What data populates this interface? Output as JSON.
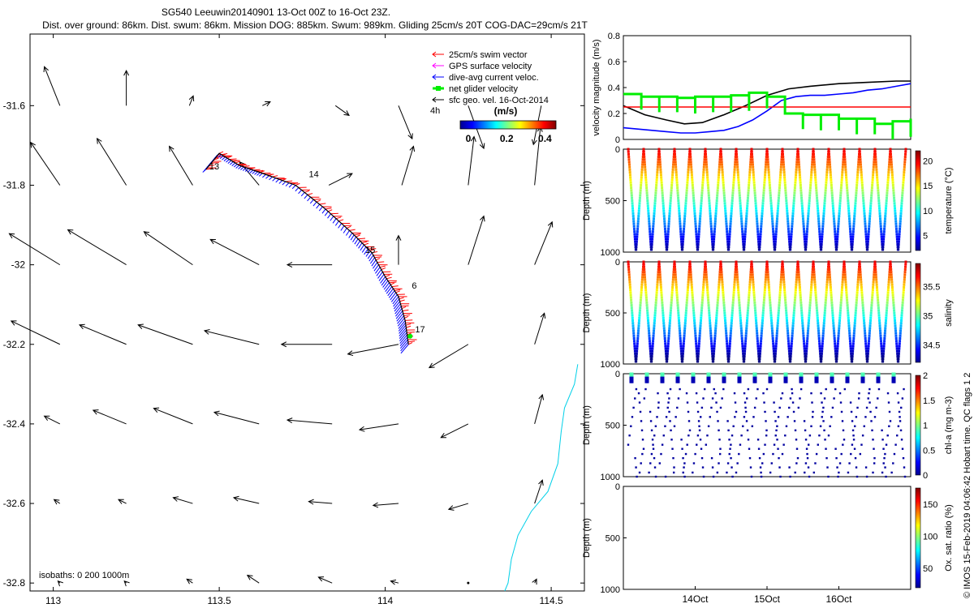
{
  "header": {
    "title_line1": "SG540 Leeuwin20140901 13-Oct 00Z to 16-Oct 23Z.",
    "title_line2": "Dist. over ground: 86km. Dist. swum: 86km. Mission DOG: 885km. Swum: 989km. Gliding 25cm/s 20T COG-DAC=29cm/s 21T"
  },
  "copyright": "© IMOS 15-Feb-2019 04:06:42 Hobart time. QC flags 1 2",
  "chart_data": [
    {
      "id": "map",
      "type": "scatter",
      "title": "",
      "xlim": [
        112.93,
        114.6
      ],
      "ylim": [
        -32.82,
        -31.42
      ],
      "x_ticks": [
        113,
        113.5,
        114,
        114.5
      ],
      "x_tick_labels": [
        "113",
        "113.5",
        "114",
        "114.5"
      ],
      "y_ticks": [
        -31.6,
        -31.8,
        -32,
        -32.2,
        -32.4,
        -32.6,
        -32.8
      ],
      "y_tick_labels": [
        "-31.6",
        "-31.8",
        "-32",
        "-32.2",
        "-32.4",
        "-32.6",
        "-32.8"
      ],
      "legend": [
        {
          "label": "25cm/s swim vector",
          "color": "#ff0000"
        },
        {
          "label": "GPS surface velocity",
          "color": "#ff00ff"
        },
        {
          "label": "dive-avg current veloc.",
          "color": "#0000ff"
        },
        {
          "label": "net glider velocity",
          "color": "#00ee00"
        },
        {
          "label": "sfc geo. vel. 16-Oct-2014",
          "color": "#000000"
        }
      ],
      "legend_extra": "4h",
      "colorbar": {
        "label": "(m/s)",
        "ticks": [
          "0",
          "0.2",
          "0.4"
        ],
        "min": 0,
        "max": 0.5
      },
      "isobaths_label": "isobaths: 0   200  1000m",
      "track": [
        [
          113.46,
          -31.76
        ],
        [
          113.5,
          -31.72
        ],
        [
          113.56,
          -31.75
        ],
        [
          113.63,
          -31.77
        ],
        [
          113.73,
          -31.8
        ],
        [
          113.82,
          -31.86
        ],
        [
          113.9,
          -31.92
        ],
        [
          113.96,
          -31.97
        ],
        [
          114.0,
          -32.03
        ],
        [
          114.04,
          -32.08
        ],
        [
          114.06,
          -32.14
        ],
        [
          114.07,
          -32.2
        ]
      ],
      "day_labels": [
        {
          "text": "13",
          "lon": 113.47,
          "lat": -31.76
        },
        {
          "text": "14",
          "lon": 113.77,
          "lat": -31.78
        },
        {
          "text": "15",
          "lon": 113.94,
          "lat": -31.97
        },
        {
          "text": "6",
          "lon": 114.08,
          "lat": -32.06
        },
        {
          "text": "17",
          "lon": 114.09,
          "lat": -32.17
        }
      ],
      "coastline": [
        [
          114.58,
          -32.25
        ],
        [
          114.57,
          -32.3
        ],
        [
          114.54,
          -32.36
        ],
        [
          114.53,
          -32.42
        ],
        [
          114.52,
          -32.5
        ],
        [
          114.49,
          -32.57
        ],
        [
          114.44,
          -32.62
        ],
        [
          114.4,
          -32.68
        ],
        [
          114.38,
          -32.74
        ],
        [
          114.37,
          -32.8
        ],
        [
          114.36,
          -32.82
        ]
      ],
      "geo_vectors": [
        {
          "lon": 113.02,
          "lat": -31.6,
          "u": -0.08,
          "v": 0.2
        },
        {
          "lon": 113.22,
          "lat": -31.6,
          "u": 0.0,
          "v": 0.18
        },
        {
          "lon": 113.41,
          "lat": -31.6,
          "u": 0.02,
          "v": 0.05
        },
        {
          "lon": 113.63,
          "lat": -31.6,
          "u": 0.04,
          "v": 0.02
        },
        {
          "lon": 113.85,
          "lat": -31.6,
          "u": 0.07,
          "v": -0.05
        },
        {
          "lon": 114.04,
          "lat": -31.6,
          "u": 0.07,
          "v": -0.17
        },
        {
          "lon": 114.25,
          "lat": -31.6,
          "u": 0.08,
          "v": -0.22
        },
        {
          "lon": 114.47,
          "lat": -31.6,
          "u": -0.04,
          "v": -0.2
        },
        {
          "lon": 113.02,
          "lat": -31.8,
          "u": -0.15,
          "v": 0.22
        },
        {
          "lon": 113.22,
          "lat": -31.8,
          "u": -0.15,
          "v": 0.24
        },
        {
          "lon": 113.42,
          "lat": -31.8,
          "u": -0.12,
          "v": 0.2
        },
        {
          "lon": 113.62,
          "lat": -31.8,
          "u": -0.1,
          "v": 0.12
        },
        {
          "lon": 113.83,
          "lat": -31.8,
          "u": 0.12,
          "v": 0.06
        },
        {
          "lon": 114.05,
          "lat": -31.8,
          "u": 0.06,
          "v": 0.2
        },
        {
          "lon": 114.25,
          "lat": -31.8,
          "u": 0.03,
          "v": 0.25
        },
        {
          "lon": 114.45,
          "lat": -31.8,
          "u": 0.03,
          "v": 0.3
        },
        {
          "lon": 113.02,
          "lat": -32.0,
          "u": -0.26,
          "v": 0.16
        },
        {
          "lon": 113.22,
          "lat": -32.0,
          "u": -0.3,
          "v": 0.18
        },
        {
          "lon": 113.42,
          "lat": -32.0,
          "u": -0.25,
          "v": 0.17
        },
        {
          "lon": 113.62,
          "lat": -32.0,
          "u": -0.25,
          "v": 0.13
        },
        {
          "lon": 113.84,
          "lat": -32.0,
          "u": -0.23,
          "v": 0.0
        },
        {
          "lon": 114.04,
          "lat": -32.0,
          "u": 0.0,
          "v": 0.15
        },
        {
          "lon": 114.25,
          "lat": -32.0,
          "u": 0.08,
          "v": 0.25
        },
        {
          "lon": 114.45,
          "lat": -32.0,
          "u": 0.09,
          "v": 0.22
        },
        {
          "lon": 113.02,
          "lat": -32.2,
          "u": -0.25,
          "v": 0.12
        },
        {
          "lon": 113.22,
          "lat": -32.2,
          "u": -0.24,
          "v": 0.1
        },
        {
          "lon": 113.42,
          "lat": -32.2,
          "u": -0.28,
          "v": 0.1
        },
        {
          "lon": 113.62,
          "lat": -32.2,
          "u": -0.28,
          "v": 0.07
        },
        {
          "lon": 113.84,
          "lat": -32.2,
          "u": -0.26,
          "v": 0.0
        },
        {
          "lon": 114.04,
          "lat": -32.2,
          "u": -0.26,
          "v": -0.05
        },
        {
          "lon": 114.25,
          "lat": -32.2,
          "u": -0.2,
          "v": -0.12
        },
        {
          "lon": 114.45,
          "lat": -32.2,
          "u": 0.05,
          "v": 0.16
        },
        {
          "lon": 113.02,
          "lat": -32.4,
          "u": -0.08,
          "v": 0.04
        },
        {
          "lon": 113.22,
          "lat": -32.4,
          "u": -0.17,
          "v": 0.07
        },
        {
          "lon": 113.42,
          "lat": -32.4,
          "u": -0.2,
          "v": 0.08
        },
        {
          "lon": 113.62,
          "lat": -32.4,
          "u": -0.23,
          "v": 0.06
        },
        {
          "lon": 113.84,
          "lat": -32.4,
          "u": -0.23,
          "v": 0.02
        },
        {
          "lon": 114.04,
          "lat": -32.4,
          "u": -0.2,
          "v": -0.03
        },
        {
          "lon": 114.25,
          "lat": -32.4,
          "u": -0.14,
          "v": -0.07
        },
        {
          "lon": 114.45,
          "lat": -32.4,
          "u": 0.04,
          "v": 0.15
        },
        {
          "lon": 113.02,
          "lat": -32.6,
          "u": -0.03,
          "v": 0.02
        },
        {
          "lon": 113.22,
          "lat": -32.6,
          "u": -0.04,
          "v": 0.02
        },
        {
          "lon": 113.42,
          "lat": -32.6,
          "u": -0.1,
          "v": 0.03
        },
        {
          "lon": 113.62,
          "lat": -32.6,
          "u": -0.13,
          "v": 0.03
        },
        {
          "lon": 113.84,
          "lat": -32.6,
          "u": -0.12,
          "v": 0.01
        },
        {
          "lon": 114.04,
          "lat": -32.6,
          "u": -0.13,
          "v": -0.01
        },
        {
          "lon": 114.25,
          "lat": -32.6,
          "u": -0.1,
          "v": -0.03
        },
        {
          "lon": 114.45,
          "lat": -32.6,
          "u": 0.04,
          "v": 0.12
        },
        {
          "lon": 113.02,
          "lat": -32.8,
          "u": -0.01,
          "v": 0.01
        },
        {
          "lon": 113.22,
          "lat": -32.8,
          "u": -0.01,
          "v": 0.01
        },
        {
          "lon": 113.42,
          "lat": -32.8,
          "u": -0.03,
          "v": 0.02
        },
        {
          "lon": 113.62,
          "lat": -32.8,
          "u": -0.06,
          "v": 0.04
        },
        {
          "lon": 113.84,
          "lat": -32.8,
          "u": -0.07,
          "v": 0.03
        },
        {
          "lon": 114.04,
          "lat": -32.8,
          "u": -0.04,
          "v": 0.01
        },
        {
          "lon": 114.25,
          "lat": -32.8,
          "u": 0.0,
          "v": 0.0
        },
        {
          "lon": 114.45,
          "lat": -32.8,
          "u": 0.01,
          "v": 0.02
        }
      ]
    },
    {
      "id": "velocity",
      "type": "line",
      "ylabel": "velocity magnitude (m/s)",
      "xlim": [
        13.0,
        17.0
      ],
      "ylim": [
        0,
        0.8
      ],
      "y_ticks": [
        0,
        0.2,
        0.4,
        0.6,
        0.8
      ],
      "series": [
        {
          "color": "#000000",
          "x": [
            13.0,
            13.3,
            13.6,
            13.85,
            14.1,
            14.4,
            14.7,
            15.0,
            15.3,
            15.6,
            16.0,
            16.4,
            16.8,
            17.0
          ],
          "values": [
            0.26,
            0.19,
            0.15,
            0.12,
            0.13,
            0.19,
            0.26,
            0.34,
            0.39,
            0.41,
            0.43,
            0.44,
            0.45,
            0.45
          ]
        },
        {
          "color": "#0000ff",
          "x": [
            13.0,
            13.2,
            13.4,
            13.6,
            13.8,
            14.0,
            14.2,
            14.4,
            14.6,
            14.8,
            15.0,
            15.2,
            15.4,
            15.6,
            15.8,
            16.0,
            16.2,
            16.4,
            16.6,
            16.8,
            17.0
          ],
          "values": [
            0.09,
            0.08,
            0.07,
            0.06,
            0.05,
            0.05,
            0.06,
            0.07,
            0.1,
            0.15,
            0.22,
            0.3,
            0.33,
            0.34,
            0.34,
            0.35,
            0.36,
            0.38,
            0.39,
            0.41,
            0.43
          ]
        },
        {
          "color": "#ff0000",
          "x": [
            13.0,
            17.0
          ],
          "values": [
            0.25,
            0.25
          ]
        },
        {
          "color": "#00ee00",
          "x": [
            13.0,
            13.25,
            13.5,
            13.75,
            14.0,
            14.25,
            14.5,
            14.75,
            15.0,
            15.25,
            15.5,
            15.75,
            16.0,
            16.25,
            16.5,
            16.75,
            17.0
          ],
          "values": [
            0.35,
            0.33,
            0.33,
            0.32,
            0.33,
            0.33,
            0.34,
            0.36,
            0.33,
            0.2,
            0.19,
            0.19,
            0.16,
            0.16,
            0.12,
            0.14,
            0.16
          ]
        }
      ]
    },
    {
      "id": "temperature",
      "type": "scatter",
      "ylabel": "Depth (m)",
      "colorbar_label": "temperature (°C)",
      "colorbar_ticks": [
        "5",
        "10",
        "15",
        "20"
      ],
      "color_range": [
        2,
        22
      ],
      "ylim": [
        1000,
        0
      ],
      "y_ticks": [
        "0",
        "500",
        "1000"
      ],
      "profiles": 18,
      "dive_depth": 990
    },
    {
      "id": "salinity",
      "type": "scatter",
      "ylabel": "Depth (m)",
      "colorbar_label": "salinity",
      "colorbar_ticks": [
        "34.5",
        "35",
        "35.5"
      ],
      "color_range": [
        34.2,
        35.9
      ],
      "ylim": [
        1000,
        0
      ],
      "y_ticks": [
        "0",
        "500",
        "1000"
      ],
      "profiles": 18,
      "dive_depth": 990
    },
    {
      "id": "chla",
      "type": "scatter",
      "ylabel": "Depth (m)",
      "colorbar_label": "chl-a (mg m-3)",
      "colorbar_ticks": [
        "0",
        "0.5",
        "1",
        "1.5",
        "2"
      ],
      "color_range": [
        0,
        2
      ],
      "ylim": [
        1000,
        0
      ],
      "y_ticks": [
        "0",
        "500",
        "1000"
      ],
      "profiles": 18,
      "dive_depth": 990
    },
    {
      "id": "oxygen",
      "type": "scatter",
      "ylabel": "Depth (m)",
      "colorbar_label": "Ox. sat. ratio (%)",
      "colorbar_ticks": [
        "50",
        "100",
        "150"
      ],
      "color_range": [
        20,
        175
      ],
      "ylim": [
        1000,
        0
      ],
      "y_ticks": [
        "0",
        "500",
        "1000"
      ],
      "profiles": 0,
      "x_ticks": [
        "14Oct",
        "15Oct",
        "16Oct"
      ],
      "x_tick_values": [
        14,
        15,
        16
      ]
    }
  ]
}
